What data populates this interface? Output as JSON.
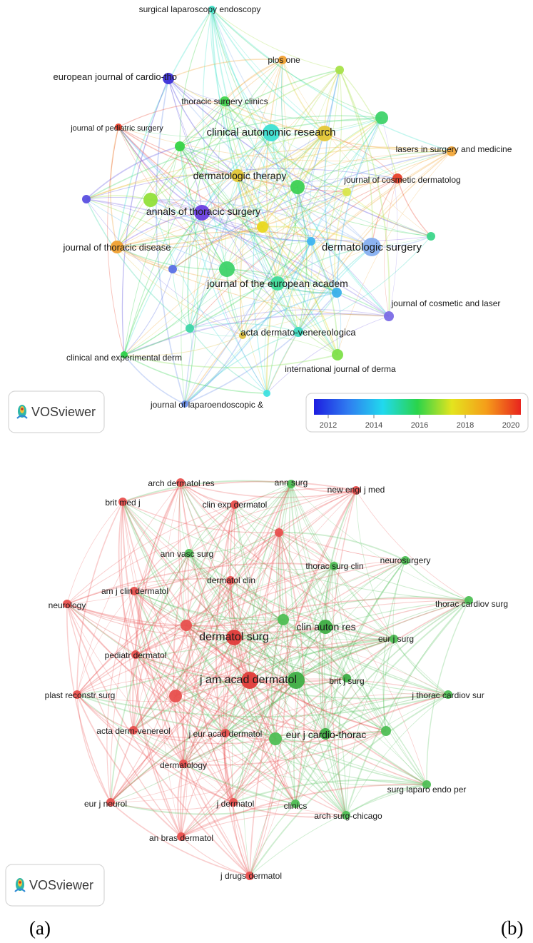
{
  "panels": [
    {
      "id": "a",
      "caption": "(a)",
      "logo_text": "VOSviewer",
      "colorbar": {
        "ticks": [
          "2012",
          "2014",
          "2016",
          "2018",
          "2020"
        ],
        "stops": [
          "#1d1de0",
          "#2f7df0",
          "#21d9ee",
          "#2ad44a",
          "#e4e41e",
          "#f59d1a",
          "#e8241e"
        ]
      },
      "nodes": [
        {
          "label": "surgical laparoscopy endoscopy",
          "color": "#3fe3c9"
        },
        {
          "label": "plos one",
          "color": "#f0a130"
        },
        {
          "label": "european journal of cardio-tho",
          "color": "#3b2fd8"
        },
        {
          "label": "thoracic surgery clinics",
          "color": "#44d650"
        },
        {
          "label": "journal of pediatric surgery",
          "color": "#e8402a"
        },
        {
          "label": "clinical autonomic research",
          "color": "#3ee0d2"
        },
        {
          "label": "lasers in surgery and medicine",
          "color": "#f2a83a"
        },
        {
          "label": "dermatologic therapy",
          "color": "#e4c736"
        },
        {
          "label": "journal of cosmetic dermatolog",
          "color": "#e8402a"
        },
        {
          "label": "annals of thoracic surgery",
          "color": "#6a3fe0"
        },
        {
          "label": "dermatologic surgery",
          "color": "#86aff0"
        },
        {
          "label": "journal of thoracic disease",
          "color": "#f0a030"
        },
        {
          "label": "journal of the european academ",
          "color": "#3fdb9a"
        },
        {
          "label": "journal of cosmetic and laser",
          "color": "#7b6be6"
        },
        {
          "label": "acta dermato-venereologica",
          "color": "#3fd9c0"
        },
        {
          "label": "clinical and experimental derm",
          "color": "#2ed24a"
        },
        {
          "label": "international journal of derma",
          "color": "#7ee04a"
        },
        {
          "label": "journal of laparoendoscopic &",
          "color": "#6b8fe8"
        }
      ]
    },
    {
      "id": "b",
      "caption": "(b)",
      "logo_text": "VOSviewer",
      "nodes": [
        {
          "label": "arch dermatol res",
          "color": "#e8504e"
        },
        {
          "label": "ann surg",
          "color": "#4fbf55"
        },
        {
          "label": "new engl j med",
          "color": "#e8504e"
        },
        {
          "label": "clin exp dermatol",
          "color": "#e8504e"
        },
        {
          "label": "brit med j",
          "color": "#e8504e"
        },
        {
          "label": "ann vasc surg",
          "color": "#4fbf55"
        },
        {
          "label": "neurosurgery",
          "color": "#4fbf55"
        },
        {
          "label": "thorac surg clin",
          "color": "#4fbf55"
        },
        {
          "label": "dermatol clin",
          "color": "#e8504e"
        },
        {
          "label": "am j clin dermatol",
          "color": "#e8504e"
        },
        {
          "label": "neurology",
          "color": "#e8504e"
        },
        {
          "label": "thorac cardiov surg",
          "color": "#4fbf55"
        },
        {
          "label": "dermatol surg",
          "color": "#e03c3a"
        },
        {
          "label": "clin auton res",
          "color": "#3fae44"
        },
        {
          "label": "eur j surg",
          "color": "#4fbf55"
        },
        {
          "label": "pediatr dermatol",
          "color": "#e8504e"
        },
        {
          "label": "j am acad dermatol",
          "color": "#e03c3a"
        },
        {
          "label": "brit j surg",
          "color": "#3fae44"
        },
        {
          "label": "plast reconstr surg",
          "color": "#e8504e"
        },
        {
          "label": "j thorac cardiov sur",
          "color": "#4fbf55"
        },
        {
          "label": "acta derm-venereol",
          "color": "#e8504e"
        },
        {
          "label": "j eur acad dermatol",
          "color": "#e8504e"
        },
        {
          "label": "eur j cardio-thorac",
          "color": "#3fae44"
        },
        {
          "label": "dermatology",
          "color": "#e8504e"
        },
        {
          "label": "surg laparo endo per",
          "color": "#4fbf55"
        },
        {
          "label": "eur j neurol",
          "color": "#e8504e"
        },
        {
          "label": "j dermatol",
          "color": "#e8504e"
        },
        {
          "label": "clinics",
          "color": "#4fbf55"
        },
        {
          "label": "arch surg-chicago",
          "color": "#4fbf55"
        },
        {
          "label": "an bras dermatol",
          "color": "#e8504e"
        },
        {
          "label": "j drugs dermatol",
          "color": "#e8504e"
        }
      ]
    }
  ]
}
